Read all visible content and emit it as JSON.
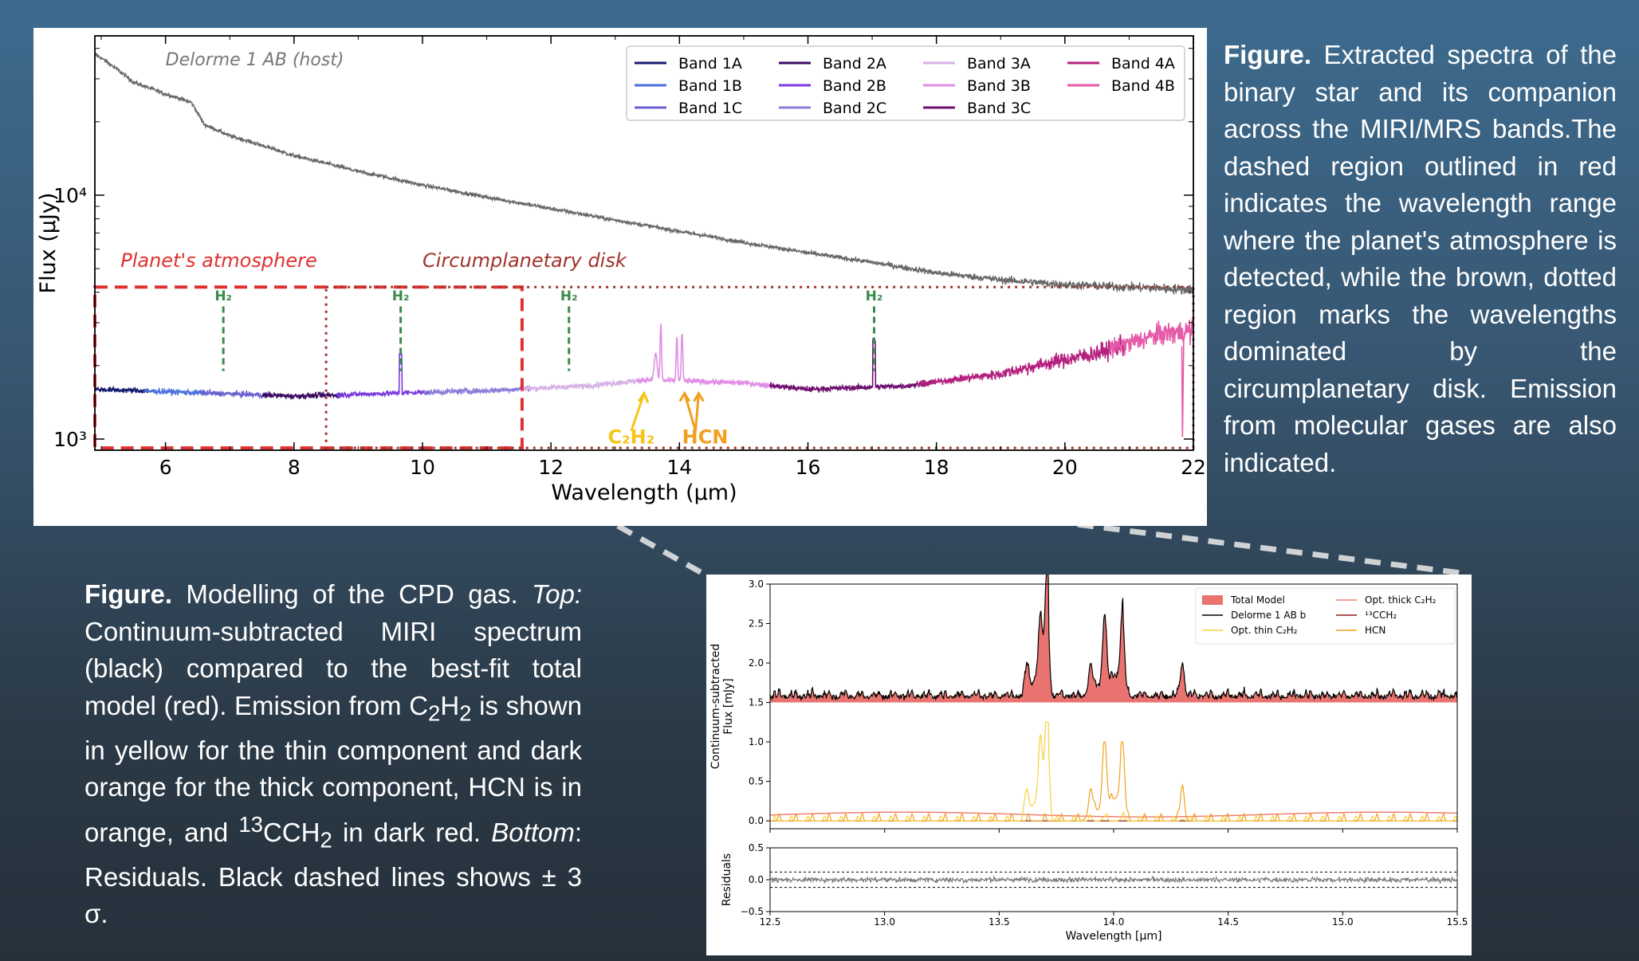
{
  "captions": {
    "top": {
      "label": "Figure.",
      "text": "Extracted spectra of the binary star and its companion across the MIRI/MRS bands.The dashed region outlined in red indicates the wavelength range where the planet's atmosphere is detected, while the brown, dotted region marks the wavelengths dominated by the circumplanetary disk. Emission from molecular gases are also indicated."
    },
    "bottom": {
      "label": "Figure.",
      "part1": "Modelling of the CPD gas.",
      "top_label": "Top:",
      "part2": "Continuum-subtracted MIRI spectrum (black) compared to the best-fit total model (red). Emission from C",
      "sub2a": "2",
      "h": "H",
      "sub2b": "2",
      "part3": "is shown in yellow for the thin component and dark orange for the thick component, HCN is in orange, and",
      "sup13": "13",
      "cch": "CCH",
      "sub2c": "2",
      "part4": "in dark red.",
      "bottom_label": "Bottom",
      "part5": ": Residuals. Black dashed lines shows ± 3 σ."
    }
  },
  "chart_data": [
    {
      "type": "line",
      "xlabel": "Wavelength (μm)",
      "ylabel": "Flux (μJy)",
      "xlim": [
        4.9,
        22
      ],
      "ylim": [
        900,
        45000
      ],
      "yscale": "log",
      "xticks": [
        "6",
        "8",
        "10",
        "12",
        "14",
        "16",
        "18",
        "20",
        "22"
      ],
      "yticks": [
        "10⁴",
        "10³"
      ],
      "legend_position": "top-right",
      "host_label": "Delorme 1 AB (host)",
      "host_series": {
        "name": "Delorme 1 AB (host)",
        "color": "#666666",
        "x": [
          4.9,
          5.5,
          6.0,
          6.4,
          6.6,
          7.0,
          8.0,
          9.0,
          10.0,
          11.0,
          12.0,
          13.0,
          14.0,
          15.0,
          16.0,
          17.0,
          18.0,
          19.0,
          20.0,
          21.0,
          22.0
        ],
        "y": [
          38000,
          29000,
          26000,
          24000,
          19500,
          17500,
          14500,
          12500,
          11000,
          9800,
          8800,
          7900,
          7100,
          6400,
          5800,
          5300,
          4800,
          4500,
          4300,
          4200,
          4100
        ]
      },
      "bands": [
        {
          "name": "Band 1A",
          "color": "#151b6e",
          "range": [
            4.9,
            5.74
          ]
        },
        {
          "name": "Band 1B",
          "color": "#4a6fdc",
          "range": [
            5.66,
            6.63
          ]
        },
        {
          "name": "Band 1C",
          "color": "#6a5fce",
          "range": [
            6.53,
            7.65
          ]
        },
        {
          "name": "Band 2A",
          "color": "#3a0c60",
          "range": [
            7.51,
            8.77
          ]
        },
        {
          "name": "Band 2B",
          "color": "#7a3ae0",
          "range": [
            8.67,
            10.13
          ]
        },
        {
          "name": "Band 2C",
          "color": "#8a7ed8",
          "range": [
            10.02,
            11.7
          ]
        },
        {
          "name": "Band 3A",
          "color": "#d7b1e6",
          "range": [
            11.55,
            13.47
          ]
        },
        {
          "name": "Band 3B",
          "color": "#e08ee6",
          "range": [
            13.34,
            15.57
          ]
        },
        {
          "name": "Band 3C",
          "color": "#6e1070",
          "range": [
            15.41,
            17.98
          ]
        },
        {
          "name": "Band 4A",
          "color": "#b5207e",
          "range": [
            17.7,
            20.95
          ]
        },
        {
          "name": "Band 4B",
          "color": "#e65aa8",
          "range": [
            20.69,
            22
          ]
        }
      ],
      "companion_level": [
        [
          4.9,
          1600
        ],
        [
          8.0,
          1500
        ],
        [
          11.0,
          1580
        ],
        [
          12.5,
          1650
        ],
        [
          13.5,
          1750
        ],
        [
          15.0,
          1700
        ],
        [
          16.0,
          1600
        ],
        [
          17.5,
          1650
        ],
        [
          19.0,
          1850
        ],
        [
          20.5,
          2250
        ],
        [
          21.5,
          2700
        ],
        [
          22.0,
          2800
        ]
      ],
      "regions": [
        {
          "label": "Planet's atmosphere",
          "color": "#e03030",
          "style": "dashed",
          "x": [
            4.9,
            11.55
          ],
          "y": [
            920,
            4200
          ]
        },
        {
          "label": "Circumplanetary disk",
          "color": "#a0342c",
          "style": "dotted",
          "x": [
            8.5,
            22
          ],
          "y": [
            920,
            4200
          ]
        }
      ],
      "annotations": [
        {
          "label": "H₂",
          "x": 6.9,
          "color": "#3a8a4c"
        },
        {
          "label": "H₂",
          "x": 9.66,
          "color": "#3a8a4c"
        },
        {
          "label": "H₂",
          "x": 12.28,
          "color": "#3a8a4c"
        },
        {
          "label": "H₂",
          "x": 17.03,
          "color": "#3a8a4c"
        },
        {
          "label": "C₂H₂",
          "x": 13.7,
          "color": "#f5c518"
        },
        {
          "label": "HCN",
          "x": 14.04,
          "color": "#f0a020"
        }
      ]
    },
    {
      "type": "line",
      "xlabel": "Wavelength [μm]",
      "ylabel": "Continuum-subtracted Flux [mJy]",
      "xlim": [
        12.5,
        15.5
      ],
      "ylim": [
        -0.1,
        3.0
      ],
      "xticks": [
        "12.5",
        "13.0",
        "13.5",
        "14.0",
        "14.5",
        "15.0",
        "15.5"
      ],
      "yticks": [
        "0.0",
        "0.5",
        "1.0",
        "1.5",
        "2.0",
        "2.5",
        "3.0"
      ],
      "legend_position": "top-right",
      "legend": [
        {
          "name": "Total Model",
          "color": "#e8736f"
        },
        {
          "name": "Delorme 1 AB b",
          "color": "#000000"
        },
        {
          "name": "Opt. thin C₂H₂",
          "color": "#f5d33a"
        },
        {
          "name": "Opt. thick C₂H₂",
          "color": "#f08070"
        },
        {
          "name": "¹³CCH₂",
          "color": "#8b1a1a"
        },
        {
          "name": "HCN",
          "color": "#f0a020"
        }
      ],
      "offset": 1.5,
      "peaks": [
        {
          "x": 13.71,
          "total": 1.25,
          "thin": 1.22,
          "hcn": 0.0
        },
        {
          "x": 13.68,
          "total": 0.75,
          "thin": 0.7,
          "hcn": 0.0
        },
        {
          "x": 13.62,
          "total": 0.35,
          "thin": 0.32,
          "hcn": 0.0
        },
        {
          "x": 13.96,
          "total": 1.1,
          "thin": 0.05,
          "hcn": 0.9
        },
        {
          "x": 14.04,
          "total": 1.15,
          "thin": 0.05,
          "hcn": 0.95
        },
        {
          "x": 13.9,
          "total": 0.4,
          "thin": 0.02,
          "hcn": 0.33
        },
        {
          "x": 14.3,
          "total": 0.45,
          "thin": 0.02,
          "hcn": 0.45
        }
      ]
    },
    {
      "type": "line",
      "xlabel": "Wavelength [μm]",
      "ylabel": "Residuals",
      "xlim": [
        12.5,
        15.5
      ],
      "ylim": [
        -0.5,
        0.5
      ],
      "yticks": [
        "0.5",
        "0.0",
        "−0.5"
      ],
      "sigma_lines": [
        0.12,
        -0.12
      ]
    }
  ]
}
